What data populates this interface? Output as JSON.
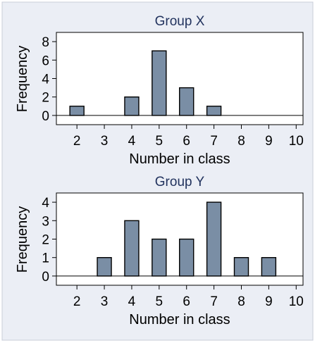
{
  "figure": {
    "background": "#ebeef5",
    "plot_background": "#ffffff",
    "bar_color": "#7a8ea5",
    "bar_edge": "#000000",
    "title_color": "#22335e"
  },
  "chart_data": [
    {
      "type": "bar",
      "title": "Group X",
      "xlabel": "Number in class",
      "ylabel": "Frequency",
      "x": [
        2,
        4,
        5,
        6,
        7
      ],
      "values": [
        1,
        2,
        7,
        3,
        1
      ],
      "xticks": [
        "2",
        "3",
        "4",
        "5",
        "6",
        "7",
        "8",
        "9",
        "10"
      ],
      "yticks": [
        "0",
        "2",
        "4",
        "6",
        "8"
      ],
      "xlim": [
        1.25,
        10.25
      ],
      "ylim": [
        -1,
        9
      ],
      "grid": false,
      "legend": "none"
    },
    {
      "type": "bar",
      "title": "Group Y",
      "xlabel": "Number in class",
      "ylabel": "Frequency",
      "x": [
        3,
        4,
        5,
        6,
        7,
        8,
        9
      ],
      "values": [
        1,
        3,
        2,
        2,
        4,
        1,
        1
      ],
      "xticks": [
        "2",
        "3",
        "4",
        "5",
        "6",
        "7",
        "8",
        "9",
        "10"
      ],
      "yticks": [
        "0",
        "1",
        "2",
        "3",
        "4"
      ],
      "xlim": [
        1.25,
        10.25
      ],
      "ylim": [
        -0.5,
        4.5
      ],
      "grid": false,
      "legend": "none"
    }
  ]
}
